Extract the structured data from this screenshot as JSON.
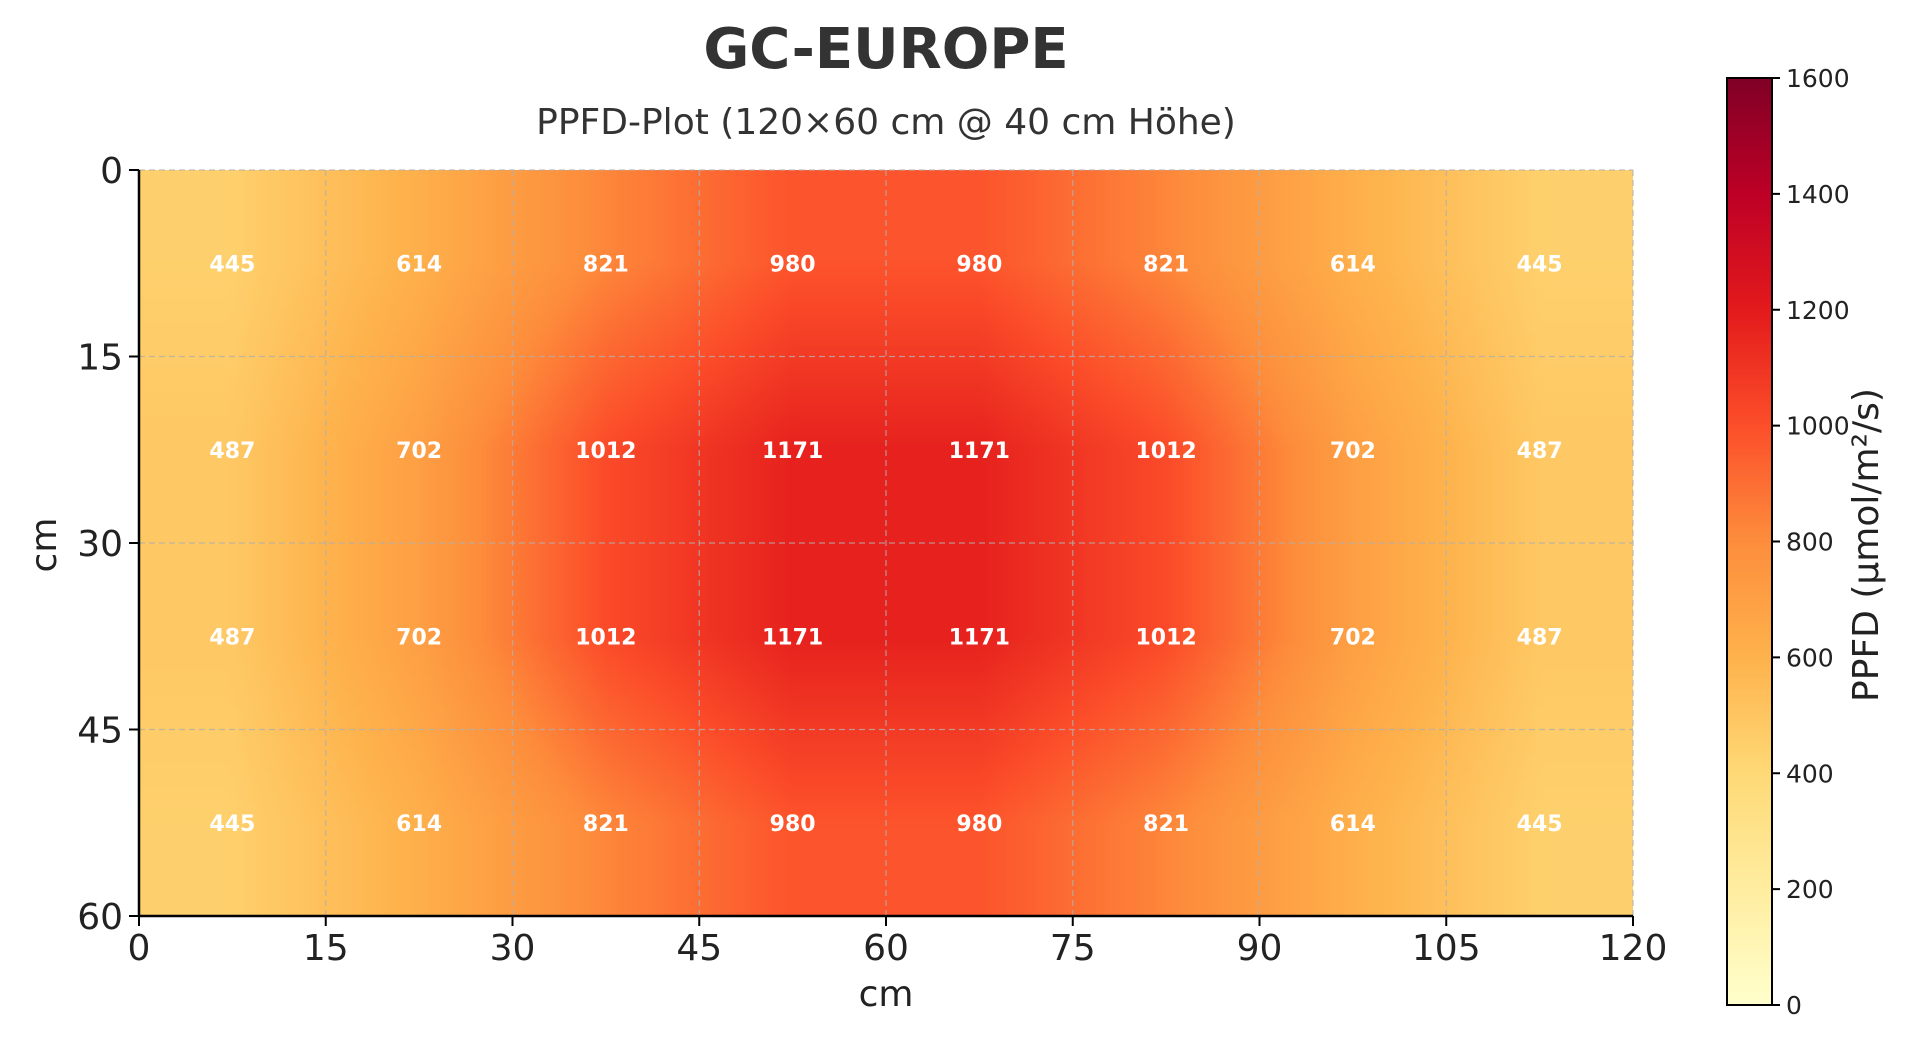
{
  "chart_data": {
    "type": "heatmap",
    "title": "GC-EUROPE",
    "subtitle": "PPFD-Plot (120×60 cm @ 40 cm Höhe)",
    "xlabel": "cm",
    "ylabel": "cm",
    "x_ticks": [
      "0",
      "15",
      "30",
      "45",
      "60",
      "75",
      "90",
      "105",
      "120"
    ],
    "y_ticks": [
      "0",
      "15",
      "30",
      "45",
      "60"
    ],
    "xlim": [
      0,
      120
    ],
    "ylim": [
      0,
      60
    ],
    "y_inverted": true,
    "grid": true,
    "x_centers": [
      7.5,
      22.5,
      37.5,
      52.5,
      67.5,
      82.5,
      97.5,
      112.5
    ],
    "y_centers": [
      7.5,
      22.5,
      37.5,
      52.5
    ],
    "values": [
      [
        445,
        614,
        821,
        980,
        980,
        821,
        614,
        445
      ],
      [
        487,
        702,
        1012,
        1171,
        1171,
        1012,
        702,
        487
      ],
      [
        487,
        702,
        1012,
        1171,
        1171,
        1012,
        702,
        487
      ],
      [
        445,
        614,
        821,
        980,
        980,
        821,
        614,
        445
      ]
    ],
    "colorbar": {
      "label": "PPFD (µmol/m²/s)",
      "min": 0,
      "max": 1600,
      "ticks": [
        "0",
        "200",
        "400",
        "600",
        "800",
        "1000",
        "1200",
        "1400",
        "1600"
      ],
      "colormap": "YlOrRd",
      "stops": [
        "#ffffcc",
        "#ffeda0",
        "#fed976",
        "#feb24c",
        "#fd8d3c",
        "#fc4e2a",
        "#e31a1c",
        "#bd0026",
        "#800026"
      ]
    }
  }
}
